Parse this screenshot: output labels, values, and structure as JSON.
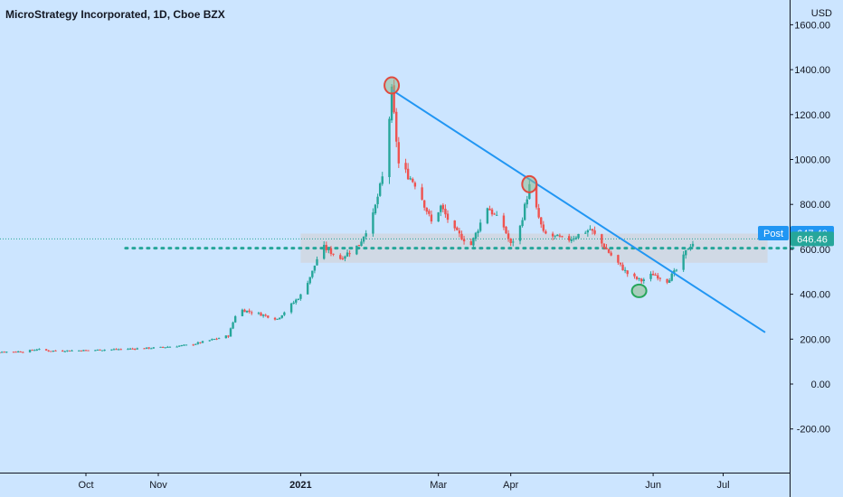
{
  "header": {
    "title": "MicroStrategy Incorporated, 1D, Cboe BZX",
    "currency": "USD"
  },
  "price_labels": {
    "post_tag": "Post",
    "post_price": "647.40",
    "last_price": "646.46"
  },
  "colors": {
    "background": "#cce5ff",
    "up": "#26a69a",
    "down": "#ef5350",
    "trendline": "#2196f3",
    "zone": "#d1d4dc",
    "support_dots": "#26a69a",
    "high_marker": "#e04a3f",
    "low_marker": "#26a65b"
  },
  "chart_data": {
    "type": "candlestick",
    "symbol": "MicroStrategy Incorporated",
    "interval": "1D",
    "exchange": "Cboe BZX",
    "y_axis": {
      "unit": "USD",
      "range": [
        -400,
        1700
      ],
      "ticks": [
        1600,
        1400,
        1200,
        1000,
        800,
        600,
        400,
        200,
        0,
        -200
      ],
      "tick_labels": [
        "1600.00",
        "1400.00",
        "1200.00",
        "1000.00",
        "800.00",
        "600.00",
        "400.00",
        "200.00",
        "0.00",
        "-200.00"
      ]
    },
    "x_axis": {
      "ticks": [
        "Oct",
        "Nov",
        "2021",
        "Mar",
        "Apr",
        "Jun",
        "Jul"
      ],
      "tick_dates": [
        "2020-10-01",
        "2020-11-01",
        "2021-01-01",
        "2021-03-01",
        "2021-04-01",
        "2021-06-01",
        "2021-07-01"
      ],
      "range": [
        "2020-08-16",
        "2021-08-10"
      ]
    },
    "series": [
      {
        "keypoints": [
          [
            "2020-08-16",
            142
          ],
          [
            "2020-09-05",
            145
          ],
          [
            "2020-09-10",
            155
          ],
          [
            "2020-09-15",
            148
          ],
          [
            "2020-10-01",
            150
          ],
          [
            "2020-10-15",
            155
          ],
          [
            "2020-11-01",
            162
          ],
          [
            "2020-11-15",
            175
          ],
          [
            "2020-12-01",
            215
          ],
          [
            "2020-12-05",
            335
          ],
          [
            "2020-12-15",
            310
          ],
          [
            "2020-12-22",
            290
          ],
          [
            "2021-01-01",
            395
          ],
          [
            "2021-01-06",
            500
          ],
          [
            "2021-01-10",
            615
          ],
          [
            "2021-01-18",
            560
          ],
          [
            "2021-01-26",
            620
          ],
          [
            "2021-02-01",
            750
          ],
          [
            "2021-02-06",
            960
          ],
          [
            "2021-02-09",
            1300
          ],
          [
            "2021-02-12",
            980
          ],
          [
            "2021-02-20",
            880
          ],
          [
            "2021-02-26",
            720
          ],
          [
            "2021-03-02",
            790
          ],
          [
            "2021-03-08",
            680
          ],
          [
            "2021-03-15",
            620
          ],
          [
            "2021-03-22",
            790
          ],
          [
            "2021-03-29",
            700
          ],
          [
            "2021-04-01",
            620
          ],
          [
            "2021-04-05",
            700
          ],
          [
            "2021-04-09",
            880
          ],
          [
            "2021-04-15",
            670
          ],
          [
            "2021-04-25",
            640
          ],
          [
            "2021-05-05",
            690
          ],
          [
            "2021-05-15",
            560
          ],
          [
            "2021-05-22",
            480
          ],
          [
            "2021-05-27",
            460
          ],
          [
            "2021-06-01",
            490
          ],
          [
            "2021-06-07",
            460
          ],
          [
            "2021-06-12",
            520
          ],
          [
            "2021-06-16",
            610
          ],
          [
            "2021-06-20",
            646.46
          ]
        ]
      }
    ],
    "annotations": {
      "trendline": {
        "from": [
          "2021-02-09",
          1310
        ],
        "to": [
          "2021-07-19",
          230
        ]
      },
      "zone": {
        "from": "2021-01-01",
        "to": "2021-07-20",
        "low": 540,
        "high": 670
      },
      "support_level": {
        "price": 605,
        "from": "2020-10-18",
        "to": "2021-07-31"
      },
      "last_price_line": 646.46,
      "high_markers": [
        [
          "2021-02-09",
          1330
        ],
        [
          "2021-04-09",
          890
        ]
      ],
      "low_markers": [
        [
          "2021-05-26",
          415
        ]
      ]
    }
  }
}
